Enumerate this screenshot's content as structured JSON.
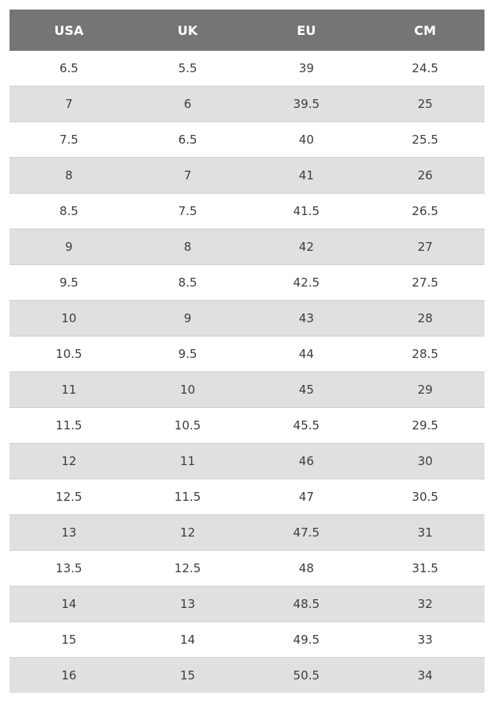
{
  "table": {
    "headers": [
      "USA",
      "UK",
      "EU",
      "CM"
    ],
    "rows": [
      [
        "6.5",
        "5.5",
        "39",
        "24.5"
      ],
      [
        "7",
        "6",
        "39.5",
        "25"
      ],
      [
        "7.5",
        "6.5",
        "40",
        "25.5"
      ],
      [
        "8",
        "7",
        "41",
        "26"
      ],
      [
        "8.5",
        "7.5",
        "41.5",
        "26.5"
      ],
      [
        "9",
        "8",
        "42",
        "27"
      ],
      [
        "9.5",
        "8.5",
        "42.5",
        "27.5"
      ],
      [
        "10",
        "9",
        "43",
        "28"
      ],
      [
        "10.5",
        "9.5",
        "44",
        "28.5"
      ],
      [
        "11",
        "10",
        "45",
        "29"
      ],
      [
        "11.5",
        "10.5",
        "45.5",
        "29.5"
      ],
      [
        "12",
        "11",
        "46",
        "30"
      ],
      [
        "12.5",
        "11.5",
        "47",
        "30.5"
      ],
      [
        "13",
        "12",
        "47.5",
        "31"
      ],
      [
        "13.5",
        "12.5",
        "48",
        "31.5"
      ],
      [
        "14",
        "13",
        "48.5",
        "32"
      ],
      [
        "15",
        "14",
        "49.5",
        "33"
      ],
      [
        "16",
        "15",
        "50.5",
        "34"
      ]
    ]
  },
  "colors": {
    "header_bg": "#757575",
    "header_text": "#ffffff",
    "stripe_bg": "#e0e0e0",
    "cell_text": "#3d3d3d"
  }
}
